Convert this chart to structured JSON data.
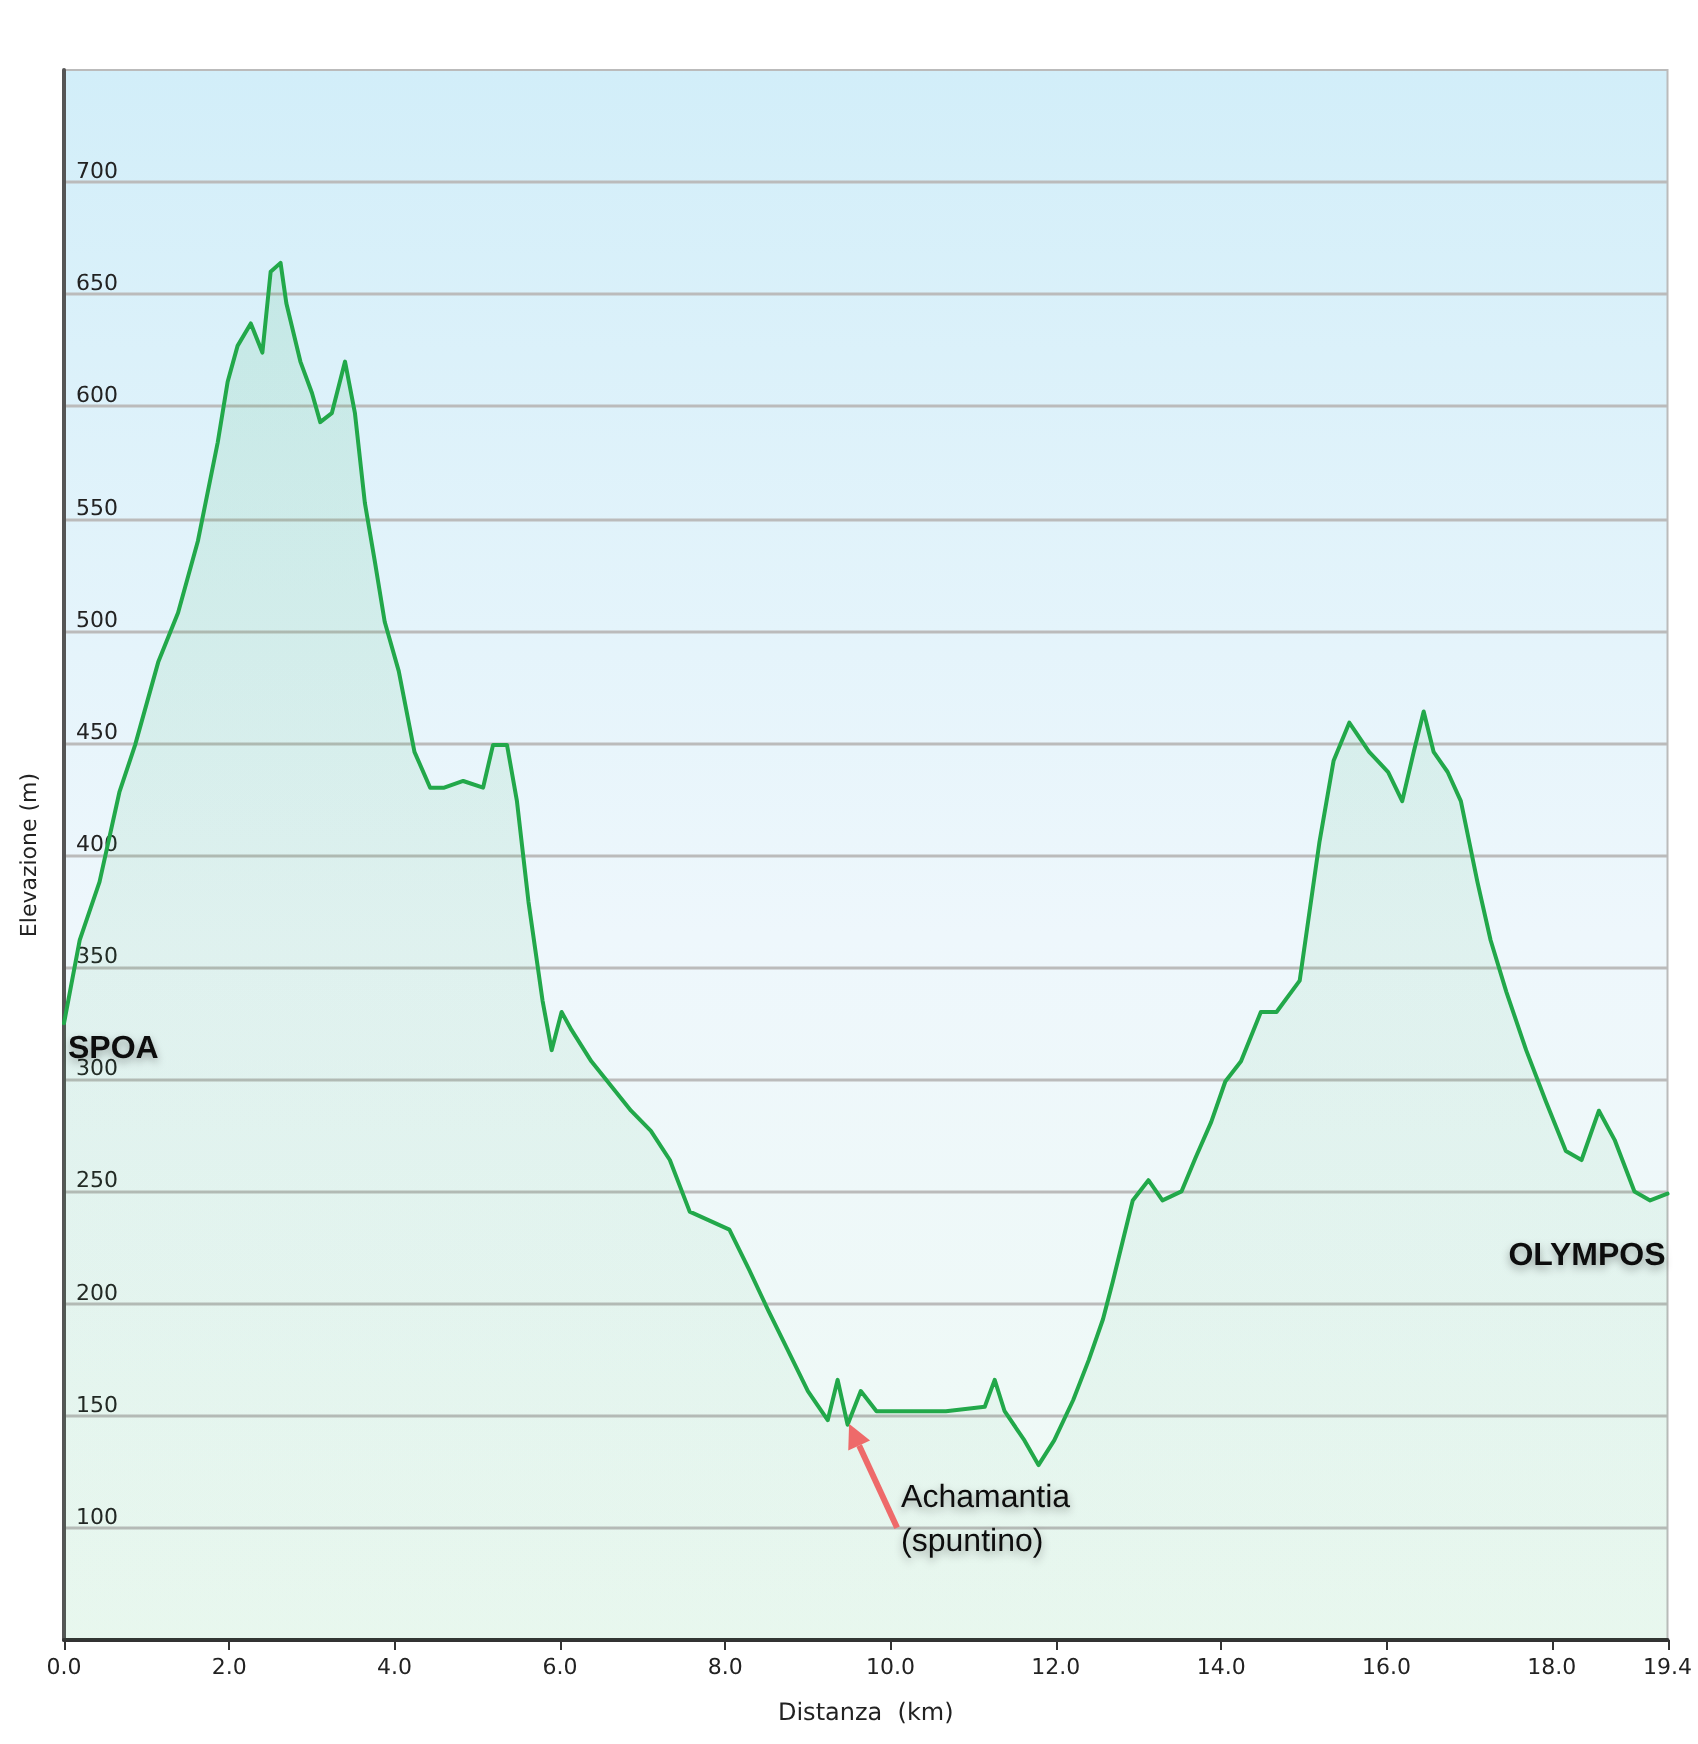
{
  "chart_data": {
    "type": "area",
    "xlabel": "Distanza  (km)",
    "ylabel": "Elevazione (m)",
    "xlim": [
      0,
      19.4
    ],
    "ylim": [
      50,
      750
    ],
    "xticks": [
      {
        "value": 0,
        "label": "0.0"
      },
      {
        "value": 2,
        "label": "2.0"
      },
      {
        "value": 4,
        "label": "4.0"
      },
      {
        "value": 6,
        "label": "6.0"
      },
      {
        "value": 8,
        "label": "8.0"
      },
      {
        "value": 10,
        "label": "10.0"
      },
      {
        "value": 12,
        "label": "12.0"
      },
      {
        "value": 14,
        "label": "14.0"
      },
      {
        "value": 16,
        "label": "16.0"
      },
      {
        "value": 18,
        "label": "18.0"
      },
      {
        "value": 19.4,
        "label": "19.4"
      }
    ],
    "yticks": [
      100,
      150,
      200,
      250,
      300,
      350,
      400,
      450,
      500,
      550,
      600,
      650,
      700
    ],
    "grid": "y",
    "marker": "none",
    "line_style": "solid",
    "annotations": [
      {
        "text": "SPOA",
        "x": 0,
        "y": 325
      },
      {
        "text": "Achamantia\n(spuntino)",
        "x": 9.45,
        "y": 150
      },
      {
        "text": "OLYMPOS",
        "x": 19.4,
        "y": 249
      }
    ],
    "series": [
      {
        "color": "#22a84a",
        "x": [
          0,
          0.19,
          0.43,
          0.67,
          0.86,
          1.14,
          1.38,
          1.62,
          1.86,
          1.98,
          2.1,
          2.26,
          2.4,
          2.5,
          2.62,
          2.69,
          2.86,
          3.0,
          3.1,
          3.24,
          3.4,
          3.52,
          3.64,
          3.76,
          3.88,
          4.05,
          4.24,
          4.43,
          4.6,
          4.83,
          5.07,
          5.19,
          5.36,
          5.48,
          5.62,
          5.79,
          5.9,
          6.02,
          6.14,
          6.38,
          6.62,
          6.86,
          7.1,
          7.33,
          7.57,
          7.81,
          8.05,
          8.29,
          8.52,
          8.76,
          9.0,
          9.24,
          9.36,
          9.48,
          9.64,
          9.83,
          10.19,
          10.67,
          11.14,
          11.26,
          11.38,
          11.62,
          11.79,
          11.98,
          12.21,
          12.4,
          12.57,
          12.69,
          12.81,
          12.93,
          13.12,
          13.29,
          13.52,
          13.69,
          13.88,
          14.05,
          14.24,
          14.48,
          14.67,
          14.95,
          15.07,
          15.19,
          15.36,
          15.55,
          15.79,
          16.02,
          16.19,
          16.33,
          16.45,
          16.57,
          16.74,
          16.9,
          17.1,
          17.26,
          17.45,
          17.69,
          17.93,
          18.17,
          18.36,
          18.57,
          18.76,
          19.0,
          19.19,
          19.4
        ],
        "values": [
          325,
          362,
          388,
          428,
          449,
          486,
          508,
          540,
          584,
          611,
          627,
          637,
          624,
          660,
          664,
          646,
          620,
          606,
          593,
          597,
          620,
          597,
          557,
          531,
          504,
          482,
          446,
          430,
          430,
          433,
          430,
          449,
          449,
          424,
          379,
          335,
          313,
          330,
          322,
          308,
          297,
          286,
          277,
          264,
          241,
          237,
          233,
          215,
          197,
          179,
          161,
          148,
          166,
          146,
          161,
          152,
          152,
          152,
          154,
          166,
          152,
          139,
          128,
          139,
          157,
          175,
          193,
          210,
          228,
          246,
          255,
          246,
          250,
          265,
          281,
          299,
          308,
          330,
          330,
          344,
          375,
          406,
          442,
          459,
          446,
          437,
          424,
          446,
          464,
          446,
          437,
          424,
          388,
          362,
          339,
          313,
          290,
          268,
          264,
          286,
          273,
          250,
          246,
          249
        ]
      }
    ]
  }
}
